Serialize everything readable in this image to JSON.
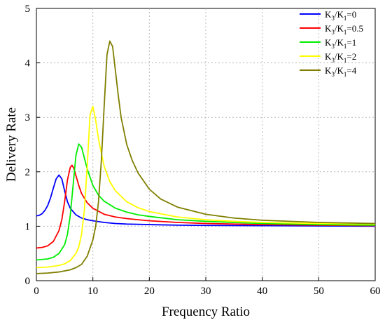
{
  "chart_data": {
    "type": "line",
    "title": "",
    "xlabel": "Frequency Ratio",
    "ylabel": "Delivery Rate",
    "xlim": [
      0,
      60
    ],
    "ylim": [
      0,
      5
    ],
    "x_ticks": [
      "0",
      "10",
      "20",
      "30",
      "40",
      "50",
      "60"
    ],
    "y_ticks": [
      "0",
      "1",
      "2",
      "3",
      "4",
      "5"
    ],
    "grid": "dotted",
    "legend_position": "top-right",
    "series": [
      {
        "name": "K3/K1=0",
        "legend_label": {
          "a": "K",
          "a_sub": "3",
          "b": "/K",
          "b_sub": "1",
          "c": "=0"
        },
        "color": "#0000ff",
        "x": [
          0,
          0.5,
          1,
          1.5,
          2,
          2.5,
          3,
          3.5,
          4,
          4.5,
          5,
          5.5,
          6,
          7,
          8,
          9,
          10,
          12,
          14,
          16,
          18,
          20,
          25,
          30,
          40,
          50,
          60
        ],
        "y": [
          1.19,
          1.2,
          1.23,
          1.29,
          1.38,
          1.52,
          1.7,
          1.87,
          1.94,
          1.87,
          1.65,
          1.45,
          1.33,
          1.21,
          1.15,
          1.12,
          1.1,
          1.07,
          1.05,
          1.04,
          1.035,
          1.03,
          1.02,
          1.015,
          1.01,
          1.005,
          1.0
        ]
      },
      {
        "name": "K3/K1=0.5",
        "legend_label": {
          "a": "K",
          "a_sub": "3",
          "b": "/K",
          "b_sub": "1",
          "c": "=0.5"
        },
        "color": "#ff0000",
        "x": [
          0,
          1,
          2,
          3,
          4,
          4.5,
          5,
          5.5,
          6,
          6.3,
          6.6,
          7,
          7.5,
          8,
          9,
          10,
          12,
          14,
          16,
          18,
          20,
          25,
          30,
          40,
          50,
          60
        ],
        "y": [
          0.6,
          0.61,
          0.64,
          0.72,
          0.92,
          1.12,
          1.45,
          1.85,
          2.08,
          2.12,
          2.07,
          1.93,
          1.75,
          1.6,
          1.43,
          1.33,
          1.22,
          1.17,
          1.14,
          1.12,
          1.1,
          1.07,
          1.05,
          1.03,
          1.02,
          1.01
        ]
      },
      {
        "name": "K3/K1=1",
        "legend_label": {
          "a": "K",
          "a_sub": "3",
          "b": "/K",
          "b_sub": "1",
          "c": "=1"
        },
        "color": "#00ee00",
        "x": [
          0,
          1,
          2,
          3,
          4,
          5,
          5.5,
          6,
          6.5,
          7,
          7.5,
          8,
          8.5,
          9,
          10,
          11,
          12,
          14,
          16,
          18,
          20,
          25,
          30,
          40,
          50,
          60
        ],
        "y": [
          0.38,
          0.39,
          0.4,
          0.43,
          0.5,
          0.66,
          0.85,
          1.2,
          1.75,
          2.3,
          2.51,
          2.45,
          2.25,
          2.05,
          1.75,
          1.57,
          1.46,
          1.33,
          1.26,
          1.21,
          1.18,
          1.12,
          1.09,
          1.05,
          1.03,
          1.02
        ]
      },
      {
        "name": "K3/K1=2",
        "legend_label": {
          "a": "K",
          "a_sub": "3",
          "b": "/K",
          "b_sub": "1",
          "c": "=2"
        },
        "color": "#ffff00",
        "x": [
          0,
          2,
          4,
          5,
          6,
          7,
          7.5,
          8,
          8.5,
          9,
          9.5,
          10,
          10.5,
          11,
          12,
          13,
          14,
          16,
          18,
          20,
          25,
          30,
          35,
          40,
          50,
          60
        ],
        "y": [
          0.24,
          0.25,
          0.28,
          0.31,
          0.37,
          0.5,
          0.62,
          0.85,
          1.3,
          2.1,
          3.05,
          3.2,
          2.95,
          2.6,
          2.1,
          1.82,
          1.65,
          1.45,
          1.34,
          1.27,
          1.17,
          1.12,
          1.09,
          1.07,
          1.05,
          1.04
        ]
      },
      {
        "name": "K3/K1=4",
        "legend_label": {
          "a": "K",
          "a_sub": "3",
          "b": "/K",
          "b_sub": "1",
          "c": "=4"
        },
        "color": "#7f7f00",
        "x": [
          0,
          2,
          4,
          6,
          7,
          8,
          9,
          10,
          10.5,
          11,
          11.5,
          12,
          12.5,
          13,
          13.5,
          14,
          14.5,
          15,
          16,
          17,
          18,
          20,
          22,
          25,
          30,
          35,
          40,
          50,
          60
        ],
        "y": [
          0.13,
          0.14,
          0.16,
          0.2,
          0.24,
          0.3,
          0.45,
          0.75,
          1.0,
          1.45,
          2.2,
          3.2,
          4.15,
          4.4,
          4.3,
          3.85,
          3.4,
          3.0,
          2.5,
          2.2,
          1.98,
          1.68,
          1.5,
          1.35,
          1.22,
          1.15,
          1.11,
          1.07,
          1.05
        ]
      }
    ]
  }
}
